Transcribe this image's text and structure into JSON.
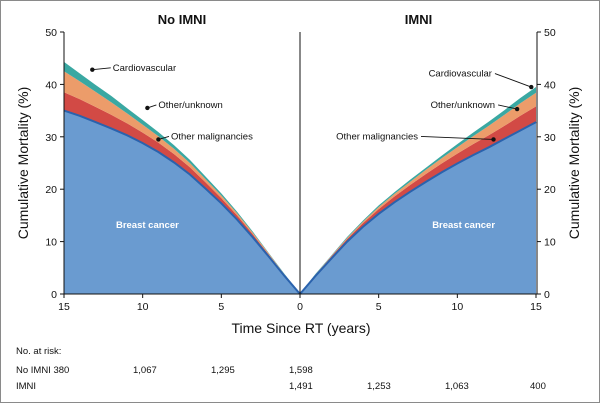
{
  "chart_data": {
    "type": "area",
    "xlabel": "Time Since RT (years)",
    "ylabel": "Cumulative Mortality (%)",
    "ylim": [
      0,
      50
    ],
    "y_ticks": [
      0,
      10,
      20,
      30,
      40,
      50
    ],
    "x_ticks": [
      0,
      5,
      10,
      15
    ],
    "colors": {
      "Breast cancer": "#6a9bd0",
      "Other malignancies": "#d24a45",
      "Other/unknown": "#ec9c6a",
      "Cardiovascular": "#3aa8a2",
      "outline": "#2a62ad"
    },
    "panels": [
      {
        "title": "No IMNI",
        "direction": "reversed",
        "x": [
          0,
          1,
          2,
          3,
          4,
          5,
          6,
          7,
          8,
          9,
          10,
          11,
          12,
          13,
          14,
          15
        ],
        "series": [
          {
            "name": "Breast cancer",
            "values": [
              0,
              3.5,
              7.2,
              10.8,
              14.2,
              17.3,
              20.1,
              22.8,
              25.1,
              27.1,
              28.8,
              30.3,
              31.6,
              32.8,
              34.0,
              35.0
            ]
          },
          {
            "name": "Other malignancies",
            "values": [
              0,
              0.2,
              0.4,
              0.6,
              0.8,
              1.0,
              1.2,
              1.4,
              1.6,
              1.8,
              2.0,
              2.3,
              2.6,
              2.9,
              3.2,
              3.5
            ]
          },
          {
            "name": "Other/unknown",
            "values": [
              0,
              0.1,
              0.2,
              0.3,
              0.4,
              0.5,
              0.6,
              0.8,
              1.0,
              1.2,
              1.5,
              1.9,
              2.4,
              2.9,
              3.4,
              4.0
            ]
          },
          {
            "name": "Cardiovascular",
            "values": [
              0,
              0.1,
              0.1,
              0.2,
              0.3,
              0.4,
              0.5,
              0.6,
              0.7,
              0.8,
              0.9,
              1.0,
              1.2,
              1.3,
              1.5,
              1.8
            ]
          }
        ],
        "annotations": [
          {
            "label": "Cardiovascular",
            "x": 13.2,
            "y": 42.8,
            "text_x": 11.9,
            "text_y": 42.6
          },
          {
            "label": "Other/unknown",
            "x": 9.7,
            "y": 35.5,
            "text_x": 9.0,
            "text_y": 35.5
          },
          {
            "label": "Other malignancies",
            "x": 9.0,
            "y": 29.5,
            "text_x": 8.2,
            "text_y": 29.5
          }
        ],
        "inner_label": {
          "label": "Breast cancer",
          "x": 9.7,
          "y": 13.2
        }
      },
      {
        "title": "IMNI",
        "direction": "normal",
        "x": [
          0,
          1,
          2,
          3,
          4,
          5,
          6,
          7,
          8,
          9,
          10,
          11,
          12,
          13,
          14,
          15
        ],
        "series": [
          {
            "name": "Breast cancer",
            "values": [
              0,
              3.5,
              6.8,
              10.0,
              12.8,
              15.3,
              17.5,
              19.5,
              21.4,
              23.2,
              24.9,
              26.5,
              28.0,
              29.6,
              31.2,
              32.8
            ]
          },
          {
            "name": "Other malignancies",
            "values": [
              0,
              0.2,
              0.4,
              0.5,
              0.7,
              0.9,
              1.1,
              1.3,
              1.5,
              1.7,
              1.9,
              2.1,
              2.3,
              2.5,
              2.8,
              3.0
            ]
          },
          {
            "name": "Other/unknown",
            "values": [
              0,
              0.1,
              0.1,
              0.2,
              0.3,
              0.4,
              0.5,
              0.6,
              0.8,
              1.0,
              1.2,
              1.5,
              1.8,
              2.1,
              2.4,
              2.6
            ]
          },
          {
            "name": "Cardiovascular",
            "values": [
              0,
              0.1,
              0.1,
              0.2,
              0.2,
              0.3,
              0.3,
              0.4,
              0.4,
              0.5,
              0.6,
              0.7,
              0.8,
              0.9,
              1.0,
              1.1
            ]
          }
        ],
        "annotations": [
          {
            "label": "Cardiovascular",
            "x": 14.7,
            "y": 39.5,
            "text_x": 12.2,
            "text_y": 41.5
          },
          {
            "label": "Other/unknown",
            "x": 13.8,
            "y": 35.3,
            "text_x": 12.4,
            "text_y": 35.5
          },
          {
            "label": "Other malignancies",
            "x": 12.3,
            "y": 29.5,
            "text_x": 7.5,
            "text_y": 29.5
          }
        ],
        "inner_label": {
          "label": "Breast cancer",
          "x": 10.4,
          "y": 13.2
        }
      }
    ]
  },
  "risk_table": {
    "title": "No. at risk:",
    "rows": [
      {
        "group": "No IMNI",
        "values": [
          "380",
          "1,067",
          "1,295",
          "1,598"
        ]
      },
      {
        "group": "IMNI",
        "values": [
          "1,491",
          "1,253",
          "1,063",
          "400"
        ]
      }
    ]
  }
}
